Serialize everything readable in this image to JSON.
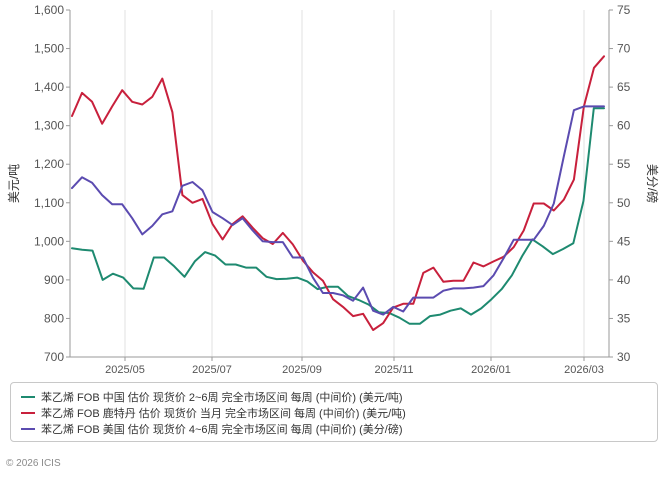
{
  "chart_data": {
    "type": "line",
    "y_left": {
      "label": "美元/吨",
      "range": [
        700,
        1600
      ],
      "ticks": [
        "700",
        "800",
        "900",
        "1,000",
        "1,100",
        "1,200",
        "1,300",
        "1,400",
        "1,500",
        "1,600"
      ]
    },
    "y_right": {
      "label": "美分/磅",
      "range": [
        30,
        75
      ],
      "ticks": [
        "30",
        "35",
        "40",
        "45",
        "50",
        "55",
        "60",
        "65",
        "70",
        "75"
      ]
    },
    "x_ticks": [
      "2025/05",
      "2025/07",
      "2025/09",
      "2025/11",
      "2026/01",
      "2026/03"
    ],
    "grid": "vertical",
    "series": [
      {
        "name": "苯乙烯 FOB 中国 估价 现货价 2~6周 完全市场区间 每周 (中间价) (美元/吨)",
        "color": "#1e8a70",
        "axis": "left",
        "values": [
          982,
          978,
          976,
          900,
          916,
          906,
          878,
          877,
          958,
          958,
          935,
          908,
          948,
          972,
          963,
          940,
          940,
          932,
          932,
          908,
          902,
          903,
          906,
          896,
          876,
          882,
          882,
          858,
          848,
          836,
          816,
          814,
          802,
          786,
          786,
          806,
          810,
          820,
          826,
          810,
          826,
          850,
          876,
          912,
          962,
          1005,
          987,
          967,
          980,
          995,
          1105,
          1345,
          1345
        ]
      },
      {
        "name": "苯乙烯 FOB 鹿特丹 估价 现货价 当月 完全市场区间 每周 (中间价) (美元/吨)",
        "color": "#c8203c",
        "axis": "left",
        "values": [
          1325,
          1385,
          1362,
          1305,
          1350,
          1392,
          1362,
          1355,
          1375,
          1422,
          1335,
          1120,
          1100,
          1110,
          1045,
          1005,
          1045,
          1065,
          1035,
          1008,
          993,
          1022,
          992,
          950,
          920,
          898,
          850,
          830,
          806,
          812,
          770,
          788,
          828,
          838,
          838,
          918,
          932,
          895,
          898,
          898,
          945,
          935,
          948,
          960,
          985,
          1028,
          1098,
          1098,
          1080,
          1108,
          1160,
          1350,
          1450,
          1480
        ]
      },
      {
        "name": "苯乙烯 FOB 美国 估价 现货价 4~6周 完全市场区间 每周 (中间价) (美分/磅)",
        "color": "#5b4bb0",
        "axis": "right",
        "values": [
          51.9,
          53.3,
          52.6,
          51.0,
          49.8,
          49.8,
          48.0,
          45.9,
          47.0,
          48.5,
          48.9,
          52.2,
          52.7,
          51.6,
          48.8,
          48.0,
          47.1,
          48.0,
          46.4,
          45.0,
          44.9,
          44.9,
          42.9,
          42.9,
          40.3,
          38.3,
          38.3,
          38.0,
          37.3,
          39.0,
          36.0,
          35.5,
          36.5,
          35.9,
          37.7,
          37.7,
          37.7,
          38.6,
          38.9,
          38.9,
          39.0,
          39.2,
          40.6,
          42.8,
          45.2,
          45.2,
          45.2,
          47.0,
          49.9,
          56.0,
          62.0,
          62.5,
          62.5,
          62.5
        ]
      }
    ]
  },
  "legend": [
    {
      "text": "苯乙烯 FOB 中国 估价 现货价 2~6周 完全市场区间 每周 (中间价) (美元/吨)",
      "color": "#1e8a70"
    },
    {
      "text": "苯乙烯 FOB 鹿特丹 估价 现货价 当月 完全市场区间 每周 (中间价) (美元/吨)",
      "color": "#c8203c"
    },
    {
      "text": "苯乙烯 FOB 美国 估价 现货价 4~6周 完全市场区间 每周 (中间价) (美分/磅)",
      "color": "#5b4bb0"
    }
  ],
  "copyright": "© 2026 ICIS"
}
